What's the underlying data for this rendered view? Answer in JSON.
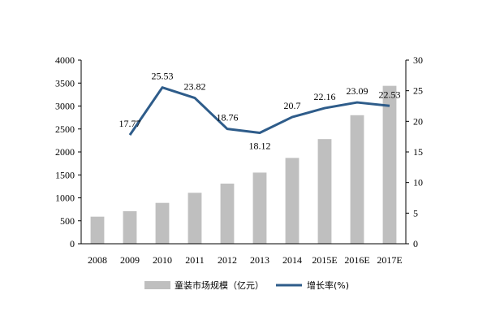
{
  "chart_data": {
    "type": "bar",
    "categories": [
      "2008",
      "2009",
      "2010",
      "2011",
      "2012",
      "2013",
      "2014",
      "2015E",
      "2016E",
      "2017E"
    ],
    "series": [
      {
        "name": "童装市场规模（亿元）",
        "type": "bar",
        "axis": "left",
        "color": "#bfbfbf",
        "values": [
          590,
          710,
          890,
          1110,
          1310,
          1550,
          1870,
          2280,
          2800,
          3440
        ]
      },
      {
        "name": "增长率(%)",
        "type": "line",
        "axis": "right",
        "color": "#2e5c8a",
        "values": [
          null,
          17.77,
          25.53,
          23.82,
          18.76,
          18.12,
          20.7,
          22.16,
          23.09,
          22.53
        ],
        "labels": [
          "",
          "17.77",
          "25.53",
          "23.82",
          "18.76",
          "18.12",
          "20.7",
          "22.16",
          "23.09",
          "22.53"
        ]
      }
    ],
    "y_left": {
      "min": 0,
      "max": 4000,
      "ticks": [
        "0",
        "500",
        "1000",
        "1500",
        "2000",
        "2500",
        "3000",
        "3500",
        "4000"
      ]
    },
    "y_right": {
      "min": 0,
      "max": 30,
      "ticks": [
        "0",
        "5",
        "10",
        "15",
        "20",
        "25",
        "30"
      ]
    },
    "legend": {
      "position": "bottom",
      "items": [
        "童装市场规模（亿元）",
        "增长率(%)"
      ]
    },
    "grid": false
  }
}
